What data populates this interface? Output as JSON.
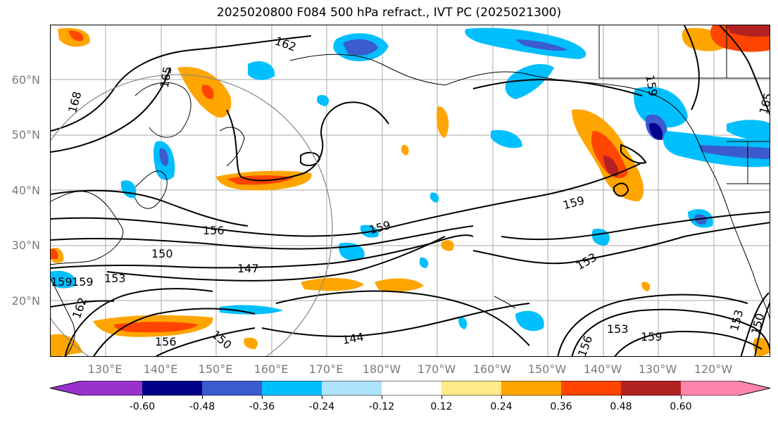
{
  "title": "2025020800 F084 500 hPa refract., IVT PC (2025021300)",
  "lat_labels": [
    "60°N",
    "50°N",
    "40°N",
    "30°N",
    "20°N"
  ],
  "lon_labels": [
    "130°E",
    "140°E",
    "150°E",
    "160°E",
    "170°E",
    "180°W",
    "170°W",
    "160°W",
    "150°W",
    "140°W",
    "130°W",
    "120°W"
  ],
  "contour_labels": [
    "162",
    "165",
    "168",
    "156",
    "150",
    "147",
    "159",
    "159",
    "159",
    "153",
    "153",
    "159",
    "144",
    "156",
    "150",
    "153",
    "162",
    "159",
    "156",
    "153",
    "150",
    "165",
    "159"
  ],
  "colorbar": {
    "ticks": [
      "-0.60",
      "-0.48",
      "-0.36",
      "-0.24",
      "-0.12",
      "0.12",
      "0.24",
      "0.36",
      "0.48",
      "0.60"
    ],
    "colors": [
      "#9932cc",
      "#00008b",
      "#3b5bcf",
      "#00bfff",
      "#aee3fd",
      "#ffffff",
      "#ffe989",
      "#ffa500",
      "#ff4500",
      "#b22222",
      "#ff85ad"
    ]
  },
  "colors": {
    "coast": "#000000",
    "contour": "#000000",
    "grid": "#a8a8a8",
    "axis_label": "#7a7a7a",
    "circle": "#8c8c8c"
  }
}
